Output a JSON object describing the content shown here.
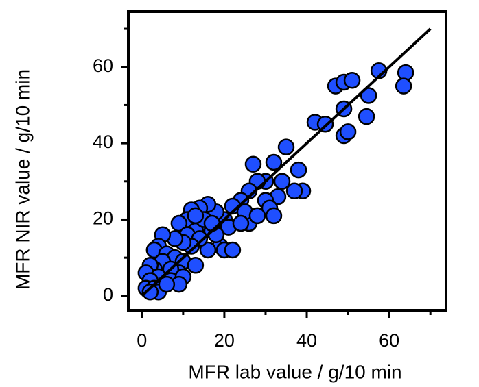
{
  "chart_data": {
    "type": "scatter",
    "xlabel": "MFR lab value / g/10 min",
    "ylabel": "MFR NIR value / g/10 min",
    "x": [
      47,
      49,
      51,
      57.5,
      64,
      63.5,
      55,
      54.5,
      49,
      49,
      50,
      42,
      44.5,
      35,
      27,
      32,
      38,
      39,
      37,
      34,
      30,
      28,
      26,
      24,
      33,
      30,
      31,
      32,
      26,
      22,
      20,
      18,
      16,
      14,
      12,
      11,
      9,
      15,
      17,
      13,
      11,
      19,
      20,
      22,
      16,
      14,
      12,
      10,
      8,
      5,
      4,
      3,
      6,
      8,
      5,
      10,
      13,
      9,
      7,
      3,
      2,
      1,
      4,
      2,
      1,
      3,
      4,
      7,
      10,
      9,
      2,
      6,
      25,
      28,
      21,
      18,
      24,
      15,
      13,
      17
    ],
    "values": [
      55,
      56,
      56.5,
      59,
      58.5,
      55,
      52.5,
      47,
      49,
      42,
      43,
      45.5,
      45,
      39,
      34.5,
      35,
      33,
      27.5,
      27.5,
      30,
      30,
      30,
      27.5,
      25,
      26,
      25,
      23,
      21,
      19,
      23.5,
      20,
      22,
      24,
      23,
      22.5,
      20,
      19,
      18,
      17,
      17,
      16,
      13,
      12,
      12,
      12,
      15,
      13,
      14,
      15,
      16,
      13,
      12,
      11,
      10,
      9,
      9,
      8,
      6,
      7,
      7,
      8,
      6,
      5,
      4,
      2,
      2,
      1,
      4,
      5,
      3,
      1,
      3,
      22,
      21,
      18,
      16,
      19,
      20,
      21,
      19
    ],
    "color": "#1f4fff",
    "fit_line": {
      "x": [
        0,
        70
      ],
      "values": [
        0,
        70
      ],
      "color": "#000000"
    },
    "xlim": [
      -3.3,
      73.8
    ],
    "ylim": [
      -3.8,
      74.5
    ],
    "xticks": [
      0,
      20,
      40,
      60
    ],
    "yticks": [
      0,
      20,
      40,
      60
    ],
    "xticks_minor": [
      10,
      30,
      50,
      70
    ],
    "yticks_minor": [
      10,
      30,
      50,
      70
    ],
    "label_color": "#8b0000"
  }
}
